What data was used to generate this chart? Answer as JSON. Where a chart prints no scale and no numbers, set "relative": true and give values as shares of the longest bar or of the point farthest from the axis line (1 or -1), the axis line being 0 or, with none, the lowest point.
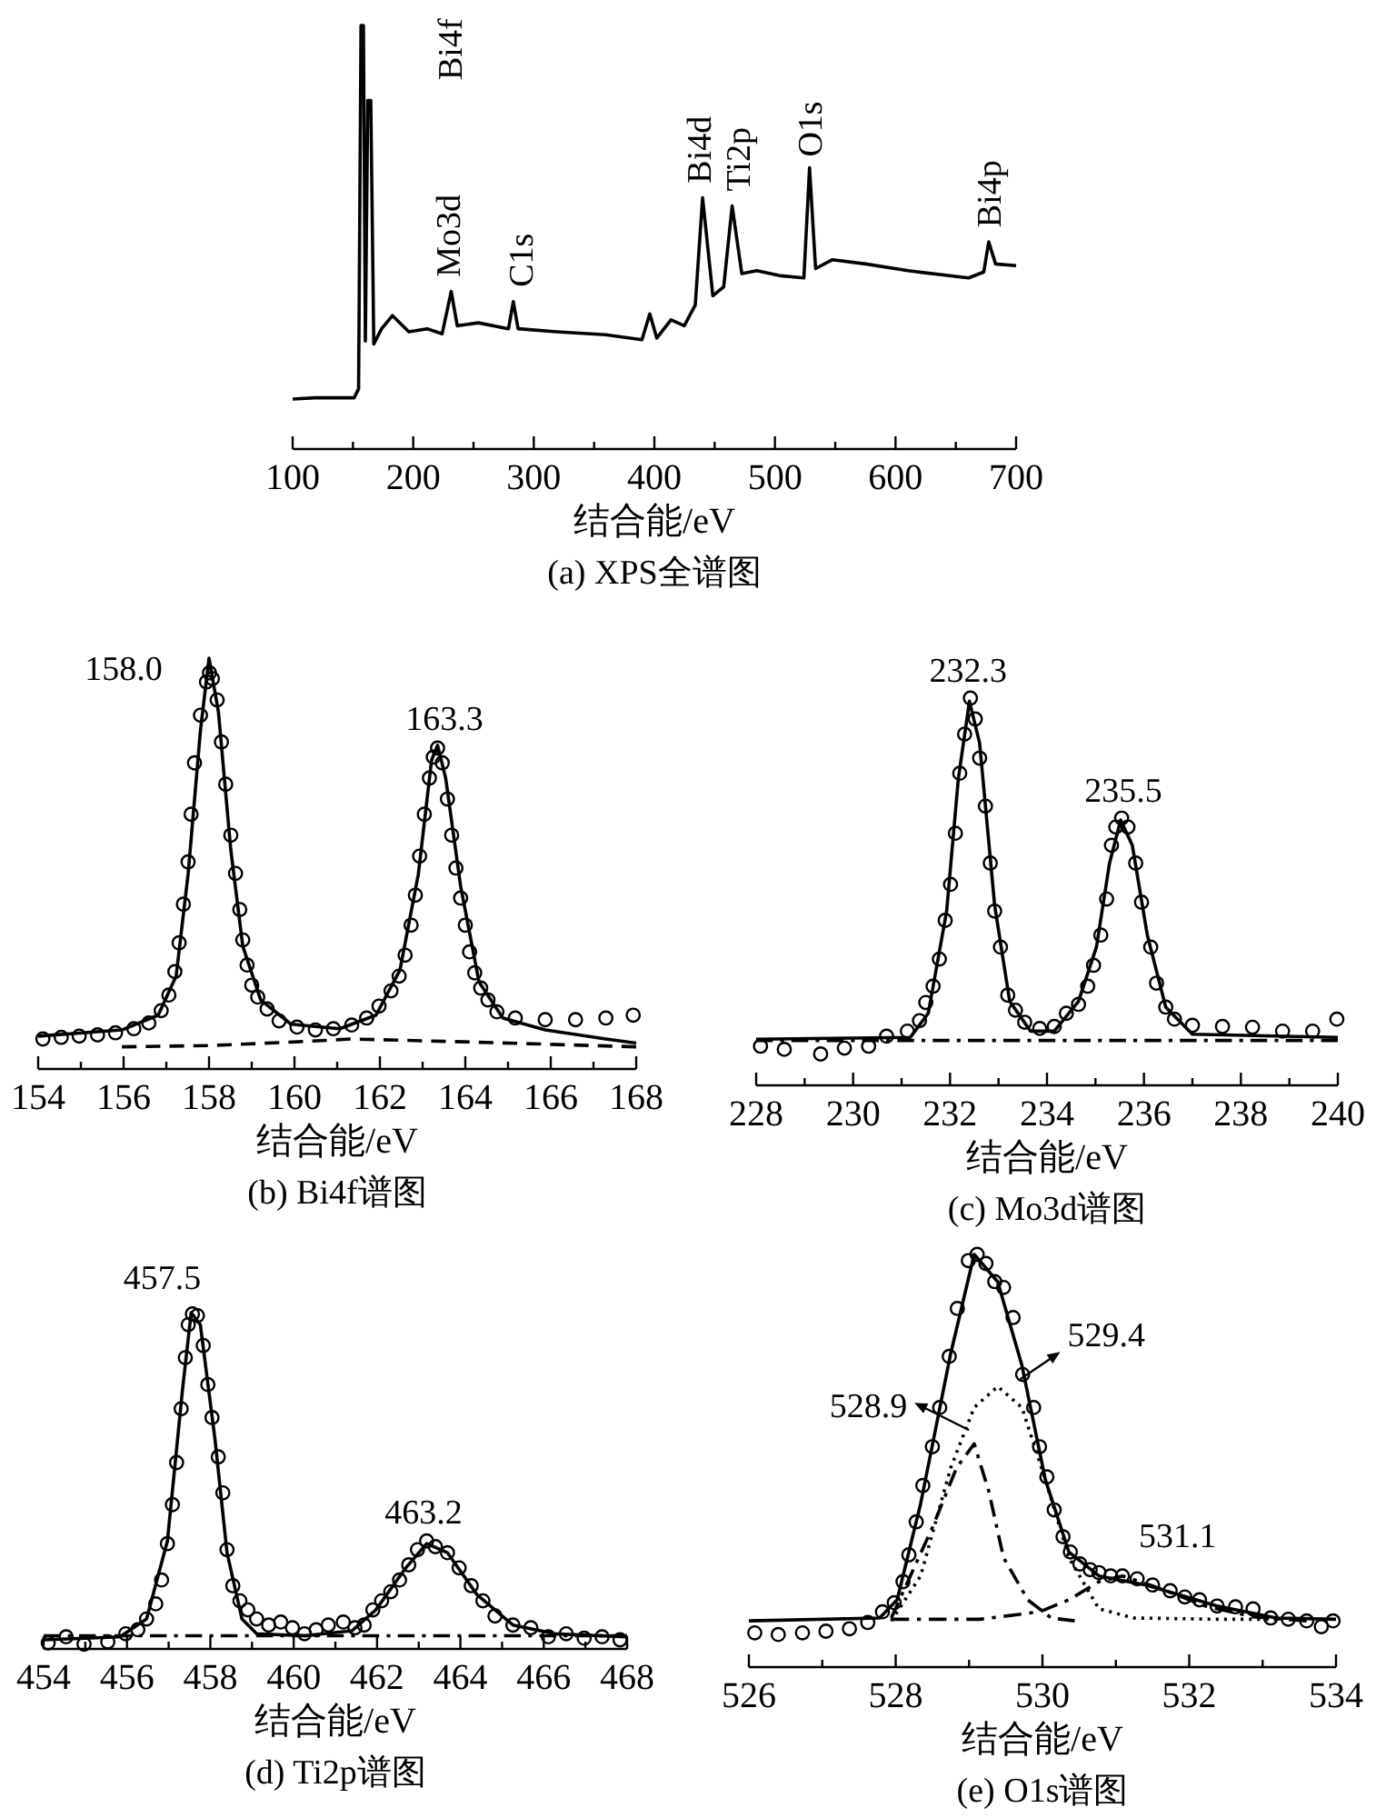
{
  "chart_data": [
    {
      "type": "line",
      "title": "(a) XPS全谱图",
      "xlabel": "结合能/eV",
      "relative": true,
      "tick_labels": "x",
      "xlim": [
        100,
        700
      ],
      "xticks": [
        100,
        {
          "value": 150,
          "label": null
        },
        200,
        {
          "value": 250,
          "label": null
        },
        300,
        {
          "value": 350,
          "label": null
        },
        400,
        {
          "value": 450,
          "label": null
        },
        500,
        {
          "value": 550,
          "label": null
        },
        600,
        {
          "value": 650,
          "label": null
        },
        700
      ],
      "series": [
        {
          "type": "line",
          "color": "#000000",
          "line_style": "solid",
          "x": [
            100,
            118.6,
            151,
            154.7,
            156.7,
            158.7,
            160.3,
            162.3,
            164.8,
            167.3,
            173.8,
            182.8,
            196.4,
            211.5,
            224,
            231.5,
            236.5,
            254,
            279,
            283,
            287,
            319,
            359.6,
            389.7,
            396.2,
            402,
            413.8,
            424.8,
            433.9,
            440,
            448.5,
            457.5,
            464.5,
            472.5,
            485,
            505,
            524,
            528.7,
            533.7,
            547.7,
            575.3,
            610.4,
            660.6,
            673.2,
            677.3,
            683,
            700
          ],
          "values": [
            0.118,
            0.121,
            0.121,
            0.142,
            1.0,
            1.0,
            0.255,
            0.823,
            0.823,
            0.248,
            0.284,
            0.315,
            0.277,
            0.284,
            0.272,
            0.372,
            0.291,
            0.298,
            0.284,
            0.348,
            0.284,
            0.277,
            0.27,
            0.258,
            0.319,
            0.262,
            0.305,
            0.291,
            0.34,
            0.593,
            0.362,
            0.383,
            0.574,
            0.414,
            0.421,
            0.409,
            0.404,
            0.664,
            0.426,
            0.447,
            0.437,
            0.421,
            0.404,
            0.418,
            0.489,
            0.437,
            0.433
          ]
        }
      ],
      "annotations": [
        {
          "text": "Bi4f",
          "x": 157.7,
          "y": 1.0
        },
        {
          "text": "Mo3d",
          "x": 231.5,
          "y": 0.372
        },
        {
          "text": "C1s",
          "x": 283,
          "y": 0.348
        },
        {
          "text": "Bi4d",
          "x": 440,
          "y": 0.593
        },
        {
          "text": "Ti2p",
          "x": 464.5,
          "y": 0.574
        },
        {
          "text": "O1s",
          "x": 528.7,
          "y": 0.664
        },
        {
          "text": "Bi4p",
          "x": 677.3,
          "y": 0.489
        }
      ]
    },
    {
      "type": "line",
      "title": "(b) Bi4f谱图",
      "xlabel": "结合能/eV",
      "relative": true,
      "tick_labels": "x",
      "xlim": [
        154,
        168
      ],
      "xticks": [
        154,
        {
          "value": 155,
          "label": null
        },
        156,
        {
          "value": 157,
          "label": null
        },
        158,
        {
          "value": 159,
          "label": null
        },
        160,
        {
          "value": 161,
          "label": null
        },
        162,
        {
          "value": 163,
          "label": null
        },
        164,
        {
          "value": 165,
          "label": null
        },
        166,
        {
          "value": 167,
          "label": null
        },
        168
      ],
      "series": [
        {
          "type": "line",
          "color": "#000000",
          "line_style": "dashed",
          "x": [
            155.96,
            158.0,
            160.06,
            161.34,
            164.0,
            166.0,
            168.0
          ],
          "values": [
            0.054,
            0.057,
            0.066,
            0.073,
            0.066,
            0.06,
            0.054
          ]
        },
        {
          "type": "line",
          "color": "#000000",
          "line_style": "solid",
          "x": [
            154.0,
            155.96,
            156.81,
            157.23,
            157.51,
            157.8,
            158.0,
            158.22,
            158.51,
            158.79,
            159.21,
            159.92,
            161.06,
            161.91,
            162.47,
            162.9,
            163.21,
            163.35,
            163.54,
            163.89,
            164.32,
            164.88,
            165.87,
            167.29,
            168.0
          ],
          "values": [
            0.08,
            0.095,
            0.131,
            0.226,
            0.474,
            0.825,
            1.0,
            0.869,
            0.533,
            0.299,
            0.168,
            0.109,
            0.098,
            0.131,
            0.241,
            0.474,
            0.752,
            0.788,
            0.708,
            0.445,
            0.212,
            0.124,
            0.095,
            0.073,
            0.063
          ]
        },
        {
          "type": "scatter",
          "color": "#000000",
          "marker": "circle",
          "x": [
            154.11,
            154.54,
            154.96,
            155.39,
            155.81,
            156.24,
            156.59,
            156.88,
            157.06,
            157.2,
            157.3,
            157.4,
            157.51,
            157.58,
            157.66,
            157.8,
            157.94,
            158.01,
            158.08,
            158.19,
            158.29,
            158.39,
            158.51,
            158.62,
            158.72,
            158.79,
            158.89,
            159.0,
            159.14,
            159.36,
            159.64,
            160.06,
            160.49,
            160.91,
            161.34,
            161.69,
            161.98,
            162.26,
            162.45,
            162.59,
            162.73,
            162.83,
            162.93,
            163.04,
            163.16,
            163.25,
            163.35,
            163.46,
            163.58,
            163.68,
            163.78,
            163.89,
            164.0,
            164.1,
            164.22,
            164.36,
            164.53,
            164.74,
            165.17,
            165.87,
            166.58,
            167.29,
            167.93
          ],
          "values": [
            0.073,
            0.077,
            0.08,
            0.083,
            0.088,
            0.098,
            0.112,
            0.142,
            0.18,
            0.237,
            0.307,
            0.401,
            0.504,
            0.62,
            0.745,
            0.861,
            0.942,
            0.964,
            0.95,
            0.898,
            0.796,
            0.693,
            0.569,
            0.476,
            0.388,
            0.314,
            0.253,
            0.204,
            0.175,
            0.146,
            0.117,
            0.102,
            0.095,
            0.098,
            0.107,
            0.124,
            0.153,
            0.19,
            0.226,
            0.277,
            0.35,
            0.423,
            0.518,
            0.62,
            0.708,
            0.759,
            0.781,
            0.745,
            0.657,
            0.569,
            0.489,
            0.416,
            0.35,
            0.285,
            0.234,
            0.197,
            0.168,
            0.139,
            0.124,
            0.12,
            0.12,
            0.124,
            0.131
          ]
        }
      ],
      "annotations": [
        {
          "text": "158.0",
          "x": 158.0,
          "y": 1.0
        },
        {
          "text": "163.3",
          "x": 163.3,
          "y": 0.79
        }
      ]
    },
    {
      "type": "line",
      "title": "(c) Mo3d谱图",
      "xlabel": "结合能/eV",
      "relative": true,
      "tick_labels": "x",
      "xlim": [
        228,
        240
      ],
      "xticks": [
        228,
        {
          "value": 229,
          "label": null
        },
        230,
        {
          "value": 231,
          "label": null
        },
        232,
        {
          "value": 233,
          "label": null
        },
        234,
        {
          "value": 235,
          "label": null
        },
        236,
        {
          "value": 237,
          "label": null
        },
        238,
        {
          "value": 239,
          "label": null
        },
        240
      ],
      "series": [
        {
          "type": "line",
          "color": "#000000",
          "line_style": "dashdot",
          "x": [
            228,
            233.9,
            240
          ],
          "values": [
            0.116,
            0.116,
            0.116
          ]
        },
        {
          "type": "line",
          "color": "#000000",
          "line_style": "solid",
          "x": [
            228,
            231.18,
            231.55,
            231.93,
            232.17,
            232.4,
            232.61,
            232.92,
            233.23,
            233.66,
            234.15,
            234.65,
            235.02,
            235.29,
            235.52,
            235.76,
            236.07,
            236.45,
            237.0,
            240
          ],
          "values": [
            0.119,
            0.124,
            0.186,
            0.45,
            0.791,
            0.992,
            0.884,
            0.465,
            0.217,
            0.14,
            0.14,
            0.217,
            0.357,
            0.574,
            0.685,
            0.62,
            0.388,
            0.202,
            0.132,
            0.124
          ]
        },
        {
          "type": "scatter",
          "color": "#000000",
          "marker": "circle",
          "x": [
            228.09,
            228.58,
            229.33,
            229.82,
            230.32,
            230.69,
            231.12,
            231.37,
            231.5,
            231.65,
            231.78,
            231.9,
            232.01,
            232.11,
            232.2,
            232.3,
            232.42,
            232.52,
            232.61,
            232.73,
            232.83,
            232.92,
            233.04,
            233.19,
            233.35,
            233.54,
            233.85,
            234.15,
            234.4,
            234.65,
            234.84,
            234.96,
            235.11,
            235.23,
            235.33,
            235.42,
            235.54,
            235.67,
            235.83,
            235.95,
            236.14,
            236.26,
            236.45,
            236.63,
            237.0,
            237.62,
            238.24,
            238.86,
            239.48,
            239.98
          ],
          "values": [
            0.101,
            0.093,
            0.081,
            0.096,
            0.101,
            0.127,
            0.14,
            0.167,
            0.214,
            0.256,
            0.326,
            0.426,
            0.519,
            0.651,
            0.806,
            0.907,
            1.0,
            0.946,
            0.845,
            0.721,
            0.574,
            0.45,
            0.357,
            0.233,
            0.194,
            0.163,
            0.147,
            0.152,
            0.186,
            0.209,
            0.256,
            0.31,
            0.388,
            0.481,
            0.62,
            0.667,
            0.69,
            0.667,
            0.574,
            0.473,
            0.357,
            0.264,
            0.202,
            0.171,
            0.155,
            0.152,
            0.15,
            0.14,
            0.14,
            0.171
          ]
        }
      ],
      "annotations": [
        {
          "text": "232.3",
          "x": 232.3,
          "y": 1.0
        },
        {
          "text": "235.5",
          "x": 235.5,
          "y": 0.69
        }
      ]
    },
    {
      "type": "line",
      "title": "(d) Ti2p谱图",
      "xlabel": "结合能/eV",
      "relative": true,
      "tick_labels": "x",
      "xlim": [
        454,
        468
      ],
      "xticks": [
        454,
        {
          "value": 455,
          "label": null
        },
        456,
        {
          "value": 457,
          "label": null
        },
        458,
        {
          "value": 459,
          "label": null
        },
        460,
        {
          "value": 461,
          "label": null
        },
        462,
        {
          "value": 463,
          "label": null
        },
        464,
        {
          "value": 465,
          "label": null
        },
        466,
        {
          "value": 467,
          "label": null
        },
        468
      ],
      "series": [
        {
          "type": "line",
          "color": "#000000",
          "line_style": "dashdot",
          "x": [
            454,
            460.83,
            468
          ],
          "values": [
            0.039,
            0.039,
            0.039
          ]
        },
        {
          "type": "line",
          "color": "#000000",
          "line_style": "solid",
          "x": [
            454,
            455.83,
            456.47,
            456.97,
            457.33,
            457.54,
            457.76,
            458.11,
            458.4,
            458.76,
            459.11,
            460.26,
            461.4,
            461.97,
            462.69,
            463.19,
            463.69,
            464.4,
            465.26,
            466.26,
            468
          ],
          "values": [
            0.027,
            0.036,
            0.089,
            0.321,
            0.768,
            1.0,
            0.964,
            0.625,
            0.286,
            0.089,
            0.045,
            0.039,
            0.054,
            0.116,
            0.241,
            0.313,
            0.286,
            0.161,
            0.071,
            0.045,
            0.036
          ]
        },
        {
          "type": "scatter",
          "color": "#000000",
          "marker": "circle",
          "x": [
            454.11,
            454.54,
            454.97,
            455.54,
            455.97,
            456.26,
            456.47,
            456.69,
            456.83,
            456.97,
            457.09,
            457.19,
            457.3,
            457.4,
            457.47,
            457.57,
            457.69,
            457.83,
            457.94,
            458.04,
            458.19,
            458.3,
            458.4,
            458.54,
            458.71,
            458.9,
            459.11,
            459.4,
            459.69,
            459.97,
            460.26,
            460.54,
            460.83,
            461.19,
            461.47,
            461.69,
            461.9,
            462.11,
            462.33,
            462.54,
            462.76,
            462.97,
            463.19,
            463.4,
            463.69,
            463.97,
            464.26,
            464.54,
            464.83,
            465.26,
            465.69,
            466.11,
            466.54,
            466.97,
            467.4,
            467.83
          ],
          "values": [
            0.018,
            0.036,
            0.014,
            0.021,
            0.045,
            0.057,
            0.089,
            0.134,
            0.205,
            0.313,
            0.429,
            0.554,
            0.714,
            0.866,
            0.964,
            0.996,
            0.991,
            0.902,
            0.786,
            0.688,
            0.571,
            0.464,
            0.295,
            0.188,
            0.143,
            0.116,
            0.089,
            0.071,
            0.08,
            0.063,
            0.045,
            0.057,
            0.071,
            0.08,
            0.063,
            0.071,
            0.116,
            0.143,
            0.17,
            0.205,
            0.25,
            0.295,
            0.321,
            0.304,
            0.286,
            0.241,
            0.188,
            0.143,
            0.098,
            0.071,
            0.063,
            0.036,
            0.045,
            0.032,
            0.036,
            0.027
          ]
        }
      ],
      "annotations": [
        {
          "text": "457.5",
          "x": 457.5,
          "y": 1.0
        },
        {
          "text": "463.2",
          "x": 463.2,
          "y": 0.32
        }
      ]
    },
    {
      "type": "line",
      "title": "(e) O1s谱图",
      "xlabel": "结合能/eV",
      "relative": true,
      "tick_labels": "x",
      "xlim": [
        526,
        534
      ],
      "xticks": [
        526,
        {
          "value": 527,
          "label": null
        },
        528,
        {
          "value": 529,
          "label": null
        },
        530,
        {
          "value": 531,
          "label": null
        },
        532,
        {
          "value": 533,
          "label": null
        },
        534
      ],
      "series": [
        {
          "type": "line",
          "color": "#000000",
          "line_style": "dashdot",
          "x": [
            527.94,
            528.5,
            528.83,
            529.07,
            529.27,
            529.47,
            529.8,
            530.12,
            530.44
          ],
          "values": [
            0.119,
            0.338,
            0.483,
            0.541,
            0.425,
            0.265,
            0.163,
            0.119,
            0.112
          ]
        },
        {
          "type": "line",
          "color": "#000000",
          "line_style": "dotted",
          "x": [
            527.94,
            528.34,
            528.75,
            529.07,
            529.39,
            529.72,
            530.04,
            530.36,
            530.77,
            531.25,
            532.38,
            533.19
          ],
          "values": [
            0.112,
            0.221,
            0.483,
            0.629,
            0.68,
            0.629,
            0.454,
            0.265,
            0.141,
            0.119,
            0.116,
            0.116
          ]
        },
        {
          "type": "line",
          "color": "#000000",
          "line_style": "dashdot",
          "x": [
            527.94,
            529.15,
            529.96,
            530.36,
            530.77,
            531.09,
            531.58,
            532.22,
            532.87,
            533.6
          ],
          "values": [
            0.116,
            0.116,
            0.134,
            0.163,
            0.207,
            0.221,
            0.192,
            0.148,
            0.122,
            0.112
          ]
        },
        {
          "type": "line",
          "color": "#000000",
          "line_style": "solid",
          "x": [
            526,
            527.78,
            528.02,
            528.34,
            528.75,
            529.07,
            529.39,
            529.72,
            530.04,
            530.36,
            530.77,
            531.41,
            532.38,
            533.19,
            534
          ],
          "values": [
            0.112,
            0.119,
            0.163,
            0.396,
            0.76,
            1.0,
            0.934,
            0.731,
            0.454,
            0.279,
            0.221,
            0.199,
            0.148,
            0.119,
            0.116
          ]
        },
        {
          "type": "scatter",
          "color": "#000000",
          "marker": "circle",
          "x": [
            526.08,
            526.4,
            526.73,
            527.05,
            527.37,
            527.62,
            527.82,
            527.98,
            528.1,
            528.18,
            528.28,
            528.37,
            528.5,
            528.6,
            528.73,
            528.84,
            528.99,
            529.11,
            529.23,
            529.35,
            529.47,
            529.6,
            529.73,
            529.88,
            529.96,
            530.06,
            530.16,
            530.28,
            530.38,
            530.51,
            530.65,
            530.77,
            530.93,
            531.09,
            531.29,
            531.5,
            531.74,
            531.94,
            532.14,
            532.38,
            532.63,
            532.87,
            533.11,
            533.35,
            533.6,
            533.8,
            533.96
          ],
          "values": [
            0.083,
            0.079,
            0.083,
            0.087,
            0.093,
            0.108,
            0.134,
            0.156,
            0.207,
            0.272,
            0.352,
            0.44,
            0.534,
            0.629,
            0.753,
            0.869,
            0.985,
            1.0,
            0.978,
            0.934,
            0.92,
            0.847,
            0.709,
            0.629,
            0.534,
            0.461,
            0.381,
            0.316,
            0.279,
            0.25,
            0.236,
            0.229,
            0.221,
            0.221,
            0.214,
            0.199,
            0.185,
            0.17,
            0.163,
            0.148,
            0.146,
            0.141,
            0.119,
            0.116,
            0.112,
            0.098,
            0.112
          ]
        }
      ],
      "annotations": [
        {
          "text": "528.9",
          "x": 528.9,
          "y": 0.57
        },
        {
          "text": "529.4",
          "x": 529.4,
          "y": 0.68
        },
        {
          "text": "531.1",
          "x": 531.1,
          "y": 0.22
        }
      ]
    }
  ]
}
